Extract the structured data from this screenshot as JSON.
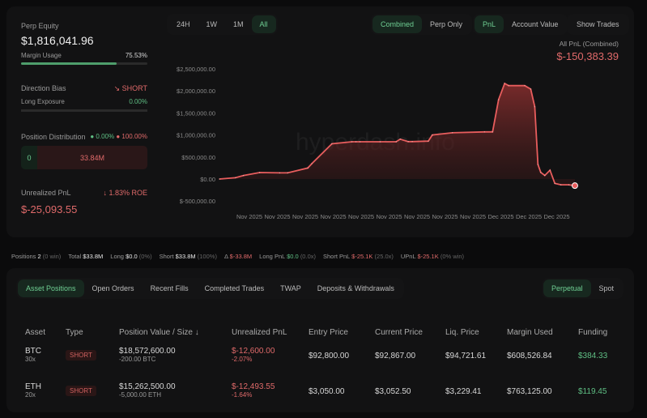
{
  "summary": {
    "perp_equity_label": "Perp Equity",
    "perp_equity": "$1,816,041.96",
    "margin_usage_label": "Margin Usage",
    "margin_usage": "75.53%",
    "margin_usage_fraction": 0.7553,
    "direction_bias_label": "Direction Bias",
    "direction_bias": "SHORT",
    "long_exposure_label": "Long Exposure",
    "long_exposure": "0.00%",
    "position_distribution_label": "Position Distribution",
    "long_pct": "0.00%",
    "short_pct": "100.00%",
    "long_value": "0",
    "short_value": "33.84M",
    "unrealized_pnl_label": "Unrealized PnL",
    "roe": "1.83% ROE",
    "unrealized_pnl": "$-25,093.55"
  },
  "chart_controls": {
    "ranges": [
      "24H",
      "1W",
      "1M",
      "All"
    ],
    "active_range": "All",
    "modes": [
      "Combined",
      "Perp Only"
    ],
    "metrics": [
      "PnL",
      "Account Value"
    ],
    "show_trades": "Show Trades"
  },
  "chart_header": {
    "label": "All PnL (Combined)",
    "value": "$-150,383.39"
  },
  "watermark": "hyperdash.info",
  "colors": {
    "accent": "#6fcf93",
    "negative": "#e06a6a",
    "line": "#e85d5d"
  },
  "chart_data": {
    "type": "area",
    "title": "All PnL (Combined)",
    "xlabel": "",
    "ylabel": "PnL",
    "ylim": [
      -500000,
      2500000
    ],
    "yticks": [
      "$2,500,000.00",
      "$2,000,000.00",
      "$1,500,000.00",
      "$1,000,000.00",
      "$500,000.00",
      "$0.00",
      "$-500,000.00"
    ],
    "ytick_values": [
      2500000,
      2000000,
      1500000,
      1000000,
      500000,
      0,
      -500000
    ],
    "xticks": [
      "Nov 2025",
      "Nov 2025",
      "Nov 2025",
      "Nov 2025",
      "Nov 2025",
      "Nov 2025",
      "Nov 2025",
      "Nov 2025",
      "Nov 2025",
      "Dec 2025",
      "Dec 2025",
      "Dec 2025"
    ],
    "x": [
      0,
      4,
      6,
      10,
      15,
      17,
      22,
      23,
      28,
      33,
      34,
      35,
      40,
      44,
      45,
      47,
      48,
      52,
      53,
      58,
      66,
      68,
      69.5,
      71,
      72,
      76,
      77.5,
      78.5,
      79.3,
      80,
      81,
      82.3,
      83.5,
      85,
      87,
      88.5
    ],
    "values": [
      0,
      30000,
      80000,
      147000,
      140000,
      140000,
      250000,
      350000,
      800000,
      845000,
      845000,
      845000,
      845000,
      845000,
      905000,
      850000,
      850000,
      860000,
      1000000,
      1050000,
      1070000,
      1070000,
      1800000,
      2170000,
      2120000,
      2120000,
      2040000,
      1640000,
      330000,
      150000,
      80000,
      200000,
      -100000,
      -130000,
      -130000,
      -150000
    ]
  },
  "stats": [
    {
      "label": "Positions",
      "value": "2",
      "extra": "(0 win)",
      "tone": "plain"
    },
    {
      "label": "Total",
      "value": "$33.8M",
      "extra": "",
      "tone": "plain"
    },
    {
      "label": "Long",
      "value": "$0.0",
      "extra": "(0%)",
      "tone": "plain"
    },
    {
      "label": "Short",
      "value": "$33.8M",
      "extra": "(100%)",
      "tone": "plain"
    },
    {
      "label": "Δ",
      "value": "$-33.8M",
      "extra": "",
      "tone": "red"
    },
    {
      "label": "Long PnL",
      "value": "$0.0",
      "extra": "(0.0x)",
      "tone": "green"
    },
    {
      "label": "Short PnL",
      "value": "$-25.1K",
      "extra": "(25.0x)",
      "tone": "red"
    },
    {
      "label": "UPnL",
      "value": "$-25.1K",
      "extra": "(0% win)",
      "tone": "red"
    }
  ],
  "tabs": [
    "Asset Positions",
    "Open Orders",
    "Recent Fills",
    "Completed Trades",
    "TWAP",
    "Deposits & Withdrawals"
  ],
  "market_tabs": [
    "Perpetual",
    "Spot"
  ],
  "table": {
    "headers": [
      "Asset",
      "Type",
      "Position Value / Size ↓",
      "Unrealized PnL",
      "Entry Price",
      "Current Price",
      "Liq. Price",
      "Margin Used",
      "Funding"
    ],
    "rows": [
      {
        "asset": "BTC",
        "leverage": "30x",
        "type": "SHORT",
        "value": "$18,572,600.00",
        "size": "-200.00 BTC",
        "pnl": "$-12,600.00",
        "pnl_pct": "-2.07%",
        "entry": "$92,800.00",
        "current": "$92,867.00",
        "liq": "$94,721.61",
        "margin": "$608,526.84",
        "funding": "$384.33"
      },
      {
        "asset": "ETH",
        "leverage": "20x",
        "type": "SHORT",
        "value": "$15,262,500.00",
        "size": "-5,000.00 ETH",
        "pnl": "$-12,493.55",
        "pnl_pct": "-1.64%",
        "entry": "$3,050.00",
        "current": "$3,052.50",
        "liq": "$3,229.41",
        "margin": "$763,125.00",
        "funding": "$119.45"
      }
    ]
  }
}
